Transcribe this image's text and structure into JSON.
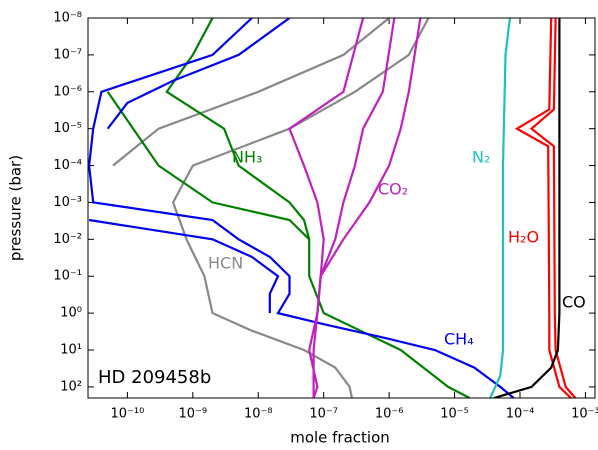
{
  "chart_data": {
    "type": "line",
    "xlabel": "mole fraction",
    "ylabel": "pressure (bar)",
    "annotation": "HD 209458b",
    "xscale": "log",
    "yscale": "log",
    "y_inverted": true,
    "xlim": [
      2.5e-11,
      0.0014
    ],
    "ylim": [
      1e-08,
      200
    ],
    "xticks": [
      {
        "value": 1e-10,
        "label": "10⁻¹⁰"
      },
      {
        "value": 1e-09,
        "label": "10⁻⁹"
      },
      {
        "value": 1e-08,
        "label": "10⁻⁸"
      },
      {
        "value": 1e-07,
        "label": "10⁻⁷"
      },
      {
        "value": 1e-06,
        "label": "10⁻⁶"
      },
      {
        "value": 1e-05,
        "label": "10⁻⁵"
      },
      {
        "value": 0.0001,
        "label": "10⁻⁴"
      },
      {
        "value": 0.001,
        "label": "10⁻³"
      }
    ],
    "yticks": [
      {
        "value": 1e-08,
        "label": "10⁻⁸"
      },
      {
        "value": 1e-07,
        "label": "10⁻⁷"
      },
      {
        "value": 1e-06,
        "label": "10⁻⁶"
      },
      {
        "value": 1e-05,
        "label": "10⁻⁵"
      },
      {
        "value": 0.0001,
        "label": "10⁻⁴"
      },
      {
        "value": 0.001,
        "label": "10⁻³"
      },
      {
        "value": 0.01,
        "label": "10⁻²"
      },
      {
        "value": 0.1,
        "label": "10⁻¹"
      },
      {
        "value": 1,
        "label": "10⁰"
      },
      {
        "value": 10,
        "label": "10¹"
      },
      {
        "value": 100,
        "label": "10²"
      }
    ],
    "series": [
      {
        "name": "HCN",
        "color": "#888888",
        "curves": [
          {
            "x": [
              4e-06,
              2e-06,
              3e-07,
              3e-08,
              1e-09,
              5e-10,
              8e-10,
              1.5e-09,
              2e-09,
              8e-09,
              5e-08,
              1.5e-07,
              2.5e-07,
              2.7e-07
            ],
            "y": [
              1e-08,
              1e-07,
              1e-06,
              1e-05,
              0.0001,
              0.001,
              0.01,
              0.1,
              1,
              3,
              10,
              30,
              100,
              200
            ]
          },
          {
            "x": [
              1e-06,
              2e-07,
              1e-08,
              3e-10,
              6e-11
            ],
            "y": [
              1e-08,
              1e-07,
              1e-06,
              1e-05,
              0.0001
            ]
          }
        ]
      },
      {
        "name": "NH₃",
        "color": "#008000",
        "curves": [
          {
            "x": [
              2e-09,
              1e-09,
              4e-10,
              3e-09,
              5e-09,
              3e-08,
              5e-08,
              6e-08,
              6e-08,
              1e-07,
              1.5e-06,
              8e-06,
              1.7e-05
            ],
            "y": [
              1e-08,
              1e-07,
              1e-06,
              1e-05,
              0.0001,
              0.001,
              0.003,
              0.01,
              0.1,
              1,
              10,
              100,
              200
            ]
          },
          {
            "x": [
              5e-11,
              3e-10,
              2e-09,
              3e-08,
              6e-08
            ],
            "y": [
              1e-06,
              0.0001,
              0.001,
              0.003,
              0.01
            ]
          }
        ]
      },
      {
        "name": "CH₄",
        "color": "#0000ee",
        "curves": [
          {
            "x": [
              8e-09,
              2e-09,
              4e-11,
              3e-11,
              2.6e-11,
              3e-11,
              2e-09,
              5e-09,
              1.5e-08,
              3e-08,
              3e-08,
              2e-08,
              1e-07,
              1e-06,
              5e-06,
              2e-05,
              5e-05,
              8e-05
            ],
            "y": [
              1e-08,
              1e-07,
              1e-06,
              1e-05,
              0.0001,
              0.001,
              0.003,
              0.01,
              0.03,
              0.1,
              0.3,
              1,
              2,
              5,
              10,
              30,
              100,
              200
            ]
          },
          {
            "x": [
              3e-08,
              5e-09,
              5e-10,
              1e-10,
              5e-11
            ],
            "y": [
              1e-08,
              1e-07,
              5e-07,
              2e-06,
              1e-05
            ]
          },
          {
            "x": [
              2.6e-11,
              2e-09,
              8e-09,
              2e-08,
              1.5e-08,
              1.5e-08
            ],
            "y": [
              0.003,
              0.01,
              0.03,
              0.1,
              0.3,
              1
            ]
          }
        ]
      },
      {
        "name": "CO₂",
        "color": "#c020c0",
        "curves": [
          {
            "x": [
              3e-06,
              2e-06,
              1.5e-06,
              1e-06,
              5e-07,
              2e-07,
              9e-08,
              8e-08,
              7e-08,
              7e-08,
              7e-08
            ],
            "y": [
              1e-08,
              1e-06,
              1e-05,
              0.0001,
              0.001,
              0.01,
              0.1,
              1,
              10,
              100,
              200
            ]
          },
          {
            "x": [
              4e-07,
              2e-07,
              3e-08,
              5e-08,
              8e-08,
              1e-07,
              9e-08,
              8e-08
            ],
            "y": [
              1e-08,
              1e-06,
              1e-05,
              0.0001,
              0.001,
              0.01,
              0.1,
              1
            ]
          },
          {
            "x": [
              1.2e-06,
              8e-07,
              4e-07,
              3e-07,
              2e-07,
              1.5e-07,
              9e-08,
              8e-08,
              6e-08,
              8e-08,
              7e-08
            ],
            "y": [
              1e-08,
              1e-06,
              1e-05,
              0.0001,
              0.001,
              0.01,
              0.1,
              1,
              10,
              100,
              200
            ]
          }
        ]
      },
      {
        "name": "N₂",
        "color": "#20bfc0",
        "curves": [
          {
            "x": [
              7e-05,
              6e-05,
              5.5e-05,
              5.5e-05,
              5e-05,
              3.5e-05
            ],
            "y": [
              1e-08,
              1e-07,
              0.0001,
              10,
              50,
              200
            ]
          }
        ]
      },
      {
        "name": "H₂O",
        "color": "#ff0000",
        "curves": [
          {
            "x": [
              0.0003,
              0.00028,
              9e-05,
              0.00027,
              0.00028,
              0.00028,
              0.0004,
              0.0006
            ],
            "y": [
              1e-08,
              3e-06,
              1e-05,
              3e-05,
              1,
              10,
              100,
              200
            ]
          },
          {
            "x": [
              0.00035,
              0.00033,
              0.00015,
              0.00033,
              0.00034,
              0.00035,
              0.0005,
              0.0007
            ],
            "y": [
              1e-08,
              3e-06,
              1e-05,
              3e-05,
              1,
              10,
              100,
              200
            ]
          }
        ]
      },
      {
        "name": "CO",
        "color": "#000000",
        "curves": [
          {
            "x": [
              0.0004,
              0.0004,
              0.0004,
              0.00038,
              0.0003,
              0.00015,
              4e-05
            ],
            "y": [
              1e-08,
              0.0001,
              1,
              10,
              30,
              100,
              200
            ]
          }
        ]
      }
    ]
  }
}
